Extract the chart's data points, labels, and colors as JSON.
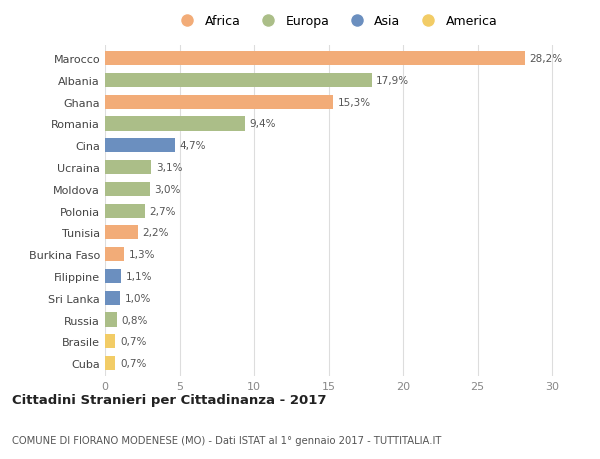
{
  "countries": [
    "Marocco",
    "Albania",
    "Ghana",
    "Romania",
    "Cina",
    "Ucraina",
    "Moldova",
    "Polonia",
    "Tunisia",
    "Burkina Faso",
    "Filippine",
    "Sri Lanka",
    "Russia",
    "Brasile",
    "Cuba"
  ],
  "values": [
    28.2,
    17.9,
    15.3,
    9.4,
    4.7,
    3.1,
    3.0,
    2.7,
    2.2,
    1.3,
    1.1,
    1.0,
    0.8,
    0.7,
    0.7
  ],
  "labels": [
    "28,2%",
    "17,9%",
    "15,3%",
    "9,4%",
    "4,7%",
    "3,1%",
    "3,0%",
    "2,7%",
    "2,2%",
    "1,3%",
    "1,1%",
    "1,0%",
    "0,8%",
    "0,7%",
    "0,7%"
  ],
  "continents": [
    "Africa",
    "Europa",
    "Africa",
    "Europa",
    "Asia",
    "Europa",
    "Europa",
    "Europa",
    "Africa",
    "Africa",
    "Asia",
    "Asia",
    "Europa",
    "America",
    "America"
  ],
  "colors": {
    "Africa": "#F2AC78",
    "Europa": "#ABBE88",
    "Asia": "#6B8FBF",
    "America": "#F2CC66"
  },
  "legend_order": [
    "Africa",
    "Europa",
    "Asia",
    "America"
  ],
  "xlim": [
    0,
    31
  ],
  "xticks": [
    0,
    5,
    10,
    15,
    20,
    25,
    30
  ],
  "title": "Cittadini Stranieri per Cittadinanza - 2017",
  "subtitle": "COMUNE DI FIORANO MODENESE (MO) - Dati ISTAT al 1° gennaio 2017 - TUTTITALIA.IT",
  "bg_color": "#ffffff",
  "grid_color": "#dddddd",
  "bar_height": 0.65
}
